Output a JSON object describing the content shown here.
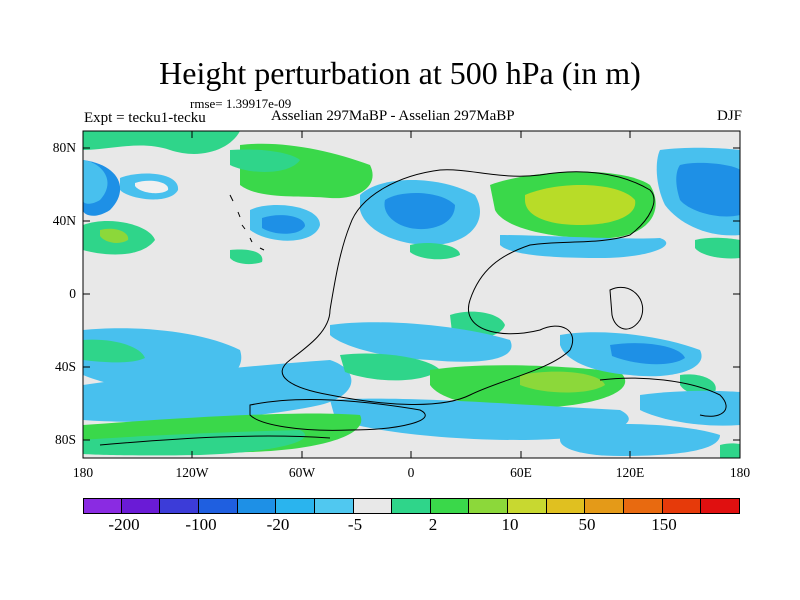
{
  "title": "Height perturbation at 500 hPa (in m)",
  "rmse": "rmse= 1.39917e-09",
  "expt": "Expt = tecku1-tecku",
  "comparison": "Asselian 297MaBP - Asselian 297MaBP",
  "season": "DJF",
  "lat_labels": [
    "80N",
    "40N",
    "0",
    "40S",
    "80S"
  ],
  "lon_labels": [
    "180",
    "120W",
    "60W",
    "0",
    "60E",
    "120E",
    "180"
  ],
  "colorbar": {
    "labels": [
      "-200",
      "-100",
      "-20",
      "-5",
      "2",
      "10",
      "50",
      "150"
    ],
    "colors": [
      "#8a2be2",
      "#6a1bd6",
      "#3c3cd8",
      "#1f5fe0",
      "#1e90e6",
      "#2ab4ee",
      "#50c8f0",
      "#e8e8e8",
      "#2fd58a",
      "#3ad84a",
      "#8cd83a",
      "#c8d830",
      "#e0c020",
      "#e49a18",
      "#e86a10",
      "#e63a0a",
      "#e01010"
    ]
  },
  "colors": {
    "land": "#e8e8e8",
    "blue_light": "#48c0ee",
    "blue_mid": "#1e90e6",
    "green": "#2fd58a",
    "green_mid": "#3ad84a",
    "yellow": "#b8dc28",
    "coast": "#000000"
  }
}
